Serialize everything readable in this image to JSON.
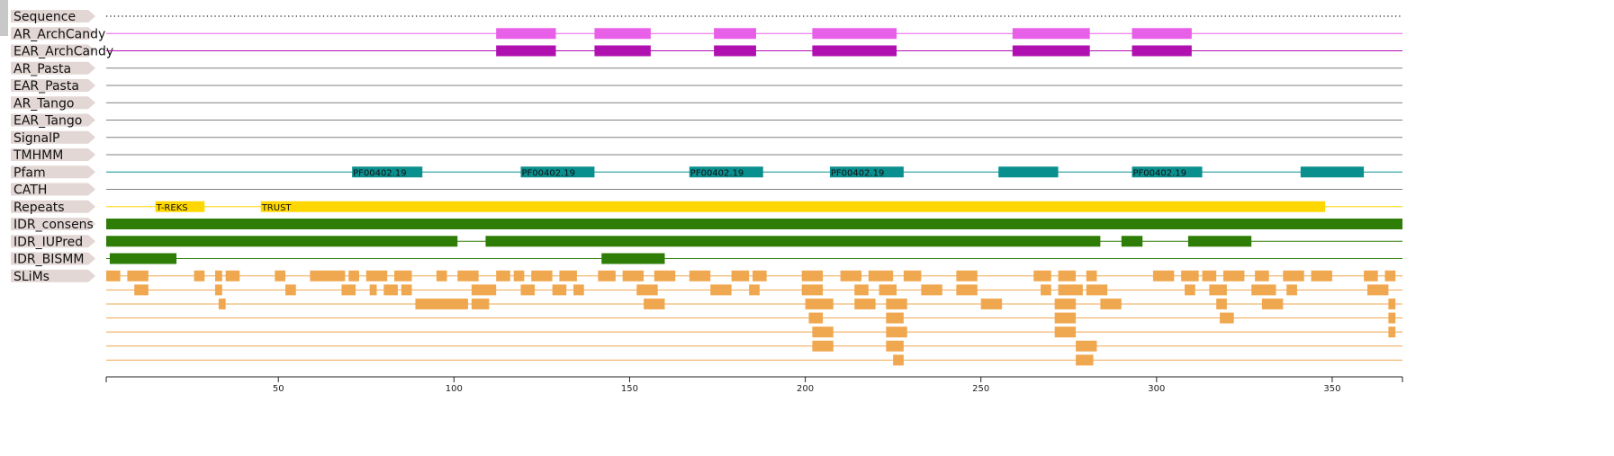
{
  "domain_range": [
    1,
    370
  ],
  "axis_ticks": [
    {
      "value": 50,
      "label": "50"
    },
    {
      "value": 100,
      "label": "100"
    },
    {
      "value": 150,
      "label": "150"
    },
    {
      "value": 200,
      "label": "200"
    },
    {
      "value": 250,
      "label": "250"
    },
    {
      "value": 300,
      "label": "300"
    },
    {
      "value": 350,
      "label": "350"
    }
  ],
  "colors": {
    "label_bg": "#e2d7d4",
    "scroll_handle": "#c8c8c8",
    "ar_archcandy": "#e860e8",
    "ear_archcandy": "#b010b0",
    "baseline_grey": "#808080",
    "pfam": "#0a8f8f",
    "repeats": "#ffd700",
    "idr": "#2e7d07",
    "slims": "#f0a850",
    "axis": "#222222"
  },
  "tracks": [
    {
      "id": "sequence",
      "label": "Sequence",
      "kind": "dotted",
      "color": "#222222"
    },
    {
      "id": "ar_archcandy",
      "label": "AR_ArchCandy",
      "kind": "features",
      "color": "#e860e8",
      "height": 12,
      "features": [
        {
          "start": 112,
          "end": 129
        },
        {
          "start": 140,
          "end": 156
        },
        {
          "start": 174,
          "end": 186
        },
        {
          "start": 202,
          "end": 226
        },
        {
          "start": 259,
          "end": 281
        },
        {
          "start": 293,
          "end": 310
        }
      ]
    },
    {
      "id": "ear_archcandy",
      "label": "EAR_ArchCandy",
      "kind": "features",
      "color": "#b010b0",
      "height": 12,
      "features": [
        {
          "start": 112,
          "end": 129
        },
        {
          "start": 140,
          "end": 156
        },
        {
          "start": 174,
          "end": 186
        },
        {
          "start": 202,
          "end": 226
        },
        {
          "start": 259,
          "end": 281
        },
        {
          "start": 293,
          "end": 310
        }
      ]
    },
    {
      "id": "ar_pasta",
      "label": "AR_Pasta",
      "kind": "line",
      "color": "#808080"
    },
    {
      "id": "ear_pasta",
      "label": "EAR_Pasta",
      "kind": "line",
      "color": "#808080"
    },
    {
      "id": "ar_tango",
      "label": "AR_Tango",
      "kind": "line",
      "color": "#808080"
    },
    {
      "id": "ear_tango",
      "label": "EAR_Tango",
      "kind": "line",
      "color": "#808080"
    },
    {
      "id": "signalp",
      "label": "SignalP",
      "kind": "line",
      "color": "#808080"
    },
    {
      "id": "tmhmm",
      "label": "TMHMM",
      "kind": "line",
      "color": "#808080"
    },
    {
      "id": "pfam",
      "label": "Pfam",
      "kind": "features",
      "color": "#0a8f8f",
      "height": 12,
      "features": [
        {
          "start": 71,
          "end": 91,
          "text": "PF00402.19"
        },
        {
          "start": 119,
          "end": 140,
          "text": "PF00402.19"
        },
        {
          "start": 167,
          "end": 188,
          "text": "PF00402.19"
        },
        {
          "start": 207,
          "end": 228,
          "text": "PF00402.19"
        },
        {
          "start": 255,
          "end": 272
        },
        {
          "start": 293,
          "end": 313,
          "text": "PF00402.19"
        },
        {
          "start": 341,
          "end": 359
        }
      ]
    },
    {
      "id": "cath",
      "label": "CATH",
      "kind": "line",
      "color": "#808080"
    },
    {
      "id": "repeats",
      "label": "Repeats",
      "kind": "features",
      "color": "#ffd700",
      "height": 12,
      "features": [
        {
          "start": 15,
          "end": 29,
          "text": "T-REKS"
        },
        {
          "start": 45,
          "end": 348,
          "text": "TRUST"
        }
      ]
    },
    {
      "id": "idr_consens",
      "label": "IDR_consens",
      "kind": "features",
      "color": "#2e7d07",
      "height": 12,
      "features": [
        {
          "start": 1,
          "end": 370
        }
      ]
    },
    {
      "id": "idr_iupred",
      "label": "IDR_IUPred",
      "kind": "features",
      "color": "#2e7d07",
      "height": 12,
      "features": [
        {
          "start": 1,
          "end": 101
        },
        {
          "start": 109,
          "end": 284
        },
        {
          "start": 290,
          "end": 296
        },
        {
          "start": 309,
          "end": 327
        }
      ]
    },
    {
      "id": "idr_bismm",
      "label": "IDR_BISMM",
      "kind": "features",
      "color": "#2e7d07",
      "height": 12,
      "features": [
        {
          "start": 2,
          "end": 21
        },
        {
          "start": 142,
          "end": 160
        }
      ]
    },
    {
      "id": "slims",
      "label": "SLiMs",
      "kind": "stacked",
      "color": "#f0a850",
      "rows": [
        [
          [
            1,
            5
          ],
          [
            7,
            13
          ],
          [
            26,
            29
          ],
          [
            32,
            34
          ],
          [
            35,
            39
          ],
          [
            49,
            52
          ],
          [
            59,
            69
          ],
          [
            70,
            73
          ],
          [
            75,
            81
          ],
          [
            83,
            88
          ],
          [
            95,
            98
          ],
          [
            101,
            107
          ],
          [
            112,
            116
          ],
          [
            117,
            120
          ],
          [
            122,
            128
          ],
          [
            130,
            135
          ],
          [
            141,
            146
          ],
          [
            148,
            154
          ],
          [
            157,
            163
          ],
          [
            167,
            173
          ],
          [
            179,
            184
          ],
          [
            185,
            189
          ],
          [
            199,
            205
          ],
          [
            210,
            216
          ],
          [
            218,
            225
          ],
          [
            228,
            233
          ],
          [
            243,
            249
          ],
          [
            265,
            270
          ],
          [
            272,
            277
          ],
          [
            280,
            283
          ],
          [
            299,
            305
          ],
          [
            307,
            312
          ],
          [
            313,
            317
          ],
          [
            319,
            325
          ],
          [
            328,
            332
          ],
          [
            336,
            342
          ],
          [
            344,
            350
          ],
          [
            359,
            363
          ],
          [
            365,
            368
          ]
        ],
        [
          [
            9,
            13
          ],
          [
            32,
            34
          ],
          [
            52,
            55
          ],
          [
            68,
            72
          ],
          [
            76,
            78
          ],
          [
            80,
            84
          ],
          [
            85,
            88
          ],
          [
            105,
            112
          ],
          [
            119,
            123
          ],
          [
            128,
            132
          ],
          [
            134,
            137
          ],
          [
            152,
            158
          ],
          [
            173,
            179
          ],
          [
            184,
            187
          ],
          [
            199,
            205
          ],
          [
            214,
            218
          ],
          [
            221,
            226
          ],
          [
            233,
            239
          ],
          [
            243,
            249
          ],
          [
            267,
            270
          ],
          [
            272,
            279
          ],
          [
            280,
            286
          ],
          [
            308,
            311
          ],
          [
            315,
            320
          ],
          [
            327,
            334
          ],
          [
            337,
            340
          ],
          [
            360,
            366
          ]
        ],
        [
          [
            33,
            35
          ],
          [
            89,
            104
          ],
          [
            105,
            110
          ],
          [
            154,
            160
          ],
          [
            200,
            208
          ],
          [
            214,
            220
          ],
          [
            223,
            229
          ],
          [
            250,
            256
          ],
          [
            271,
            277
          ],
          [
            284,
            290
          ],
          [
            317,
            320
          ],
          [
            330,
            336
          ],
          [
            366,
            368
          ]
        ],
        [
          [
            201,
            205
          ],
          [
            223,
            228
          ],
          [
            271,
            277
          ],
          [
            318,
            322
          ],
          [
            366,
            368
          ]
        ],
        [
          [
            202,
            208
          ],
          [
            223,
            229
          ],
          [
            271,
            277
          ],
          [
            366,
            368
          ]
        ],
        [
          [
            202,
            208
          ],
          [
            223,
            228
          ],
          [
            277,
            283
          ]
        ],
        [
          [
            225,
            228
          ],
          [
            277,
            282
          ]
        ]
      ]
    }
  ]
}
